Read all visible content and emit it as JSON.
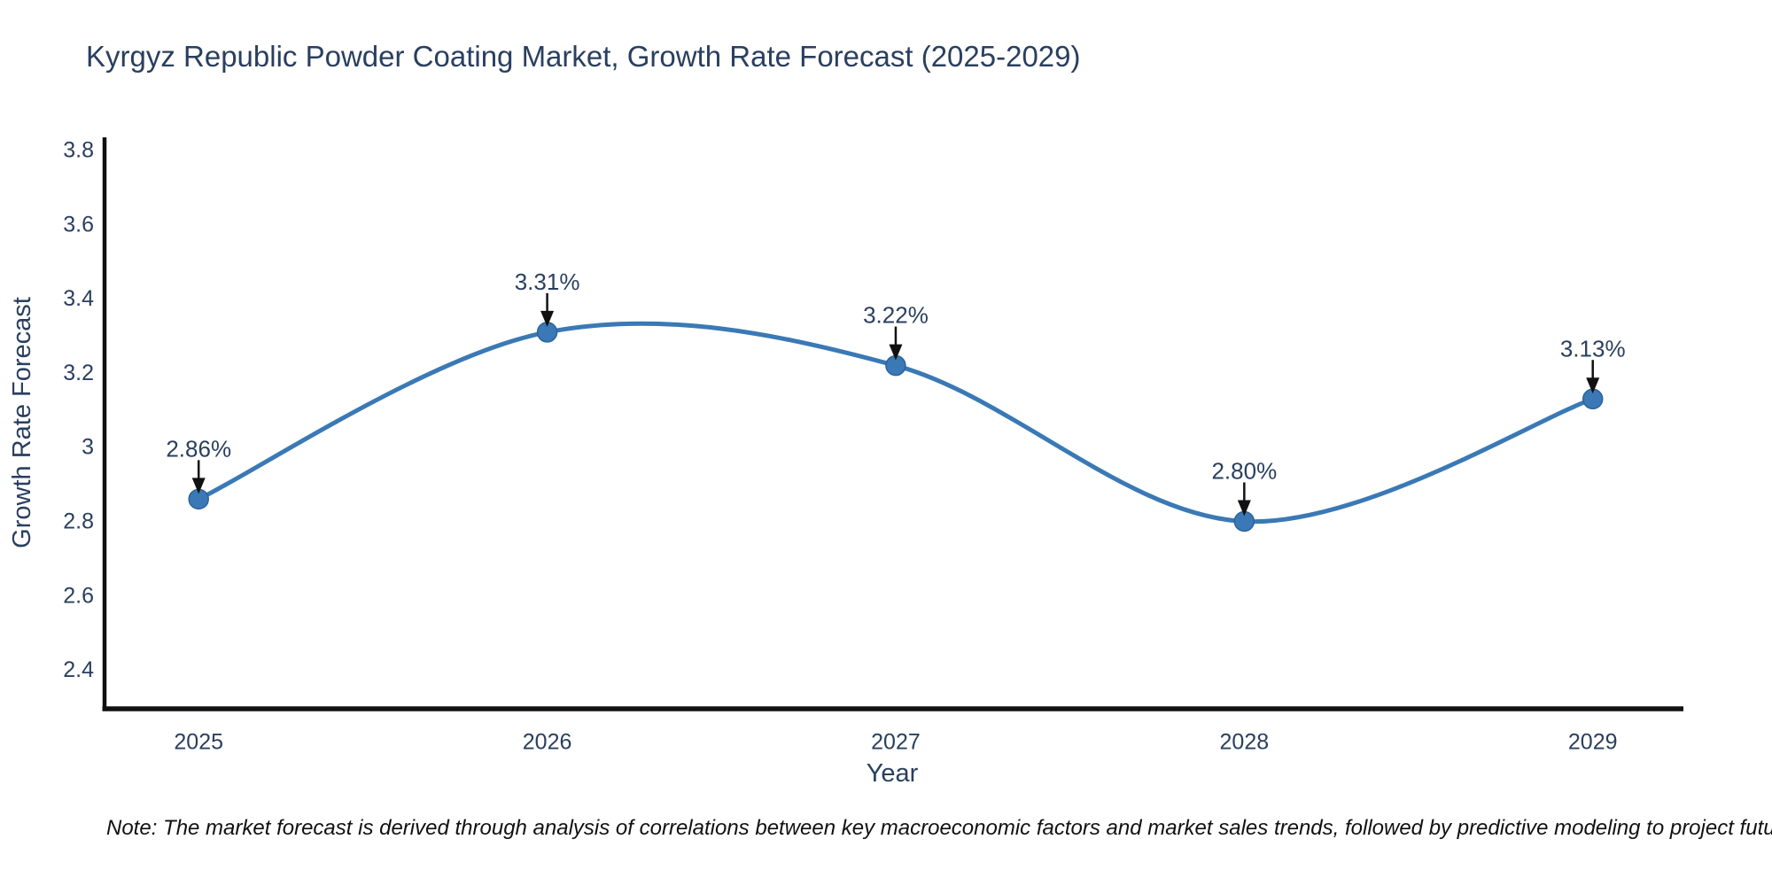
{
  "title": "Kyrgyz Republic Powder Coating Market, Growth Rate Forecast (2025-2029)",
  "note": "Note: The market forecast is derived through analysis of correlations between key macroeconomic factors and market sales trends, followed by predictive modeling to project future sales",
  "chart_data": {
    "type": "line",
    "curve": "spline",
    "x": [
      2025,
      2026,
      2027,
      2028,
      2029
    ],
    "values": [
      2.86,
      3.31,
      3.22,
      2.8,
      3.13
    ],
    "point_labels": [
      "2.86%",
      "3.31%",
      "3.22%",
      "2.80%",
      "3.13%"
    ],
    "title": "Kyrgyz Republic Powder Coating Market, Growth Rate Forecast (2025-2029)",
    "xlabel": "Year",
    "ylabel": "Growth Rate Forecast",
    "xticks": [
      2025,
      2026,
      2027,
      2028,
      2029
    ],
    "yticks": [
      3.8,
      3.6,
      3.4,
      3.2,
      3,
      2.8,
      2.6,
      2.4
    ],
    "xlim": [
      2024.73,
      2029.26
    ],
    "ylim": [
      2.295,
      3.835
    ],
    "grid": false,
    "legend": "none",
    "markers": true,
    "annotation_arrows": true,
    "colors": {
      "line": "#3a79b5",
      "marker_fill": "#3a79b5",
      "marker_edge": "#2d6399",
      "text": "#2a3f5f",
      "axis": "#111111",
      "arrow": "#111111",
      "note_text": "#111111",
      "background": "#ffffff"
    }
  }
}
